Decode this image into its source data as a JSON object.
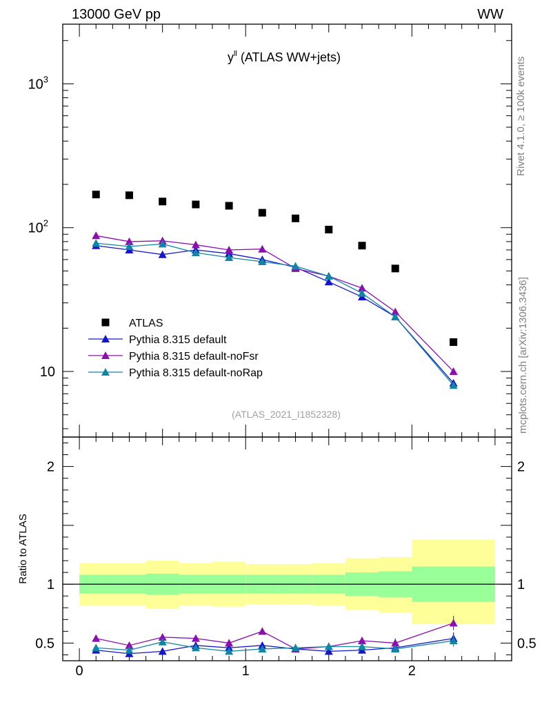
{
  "header": {
    "left": "13000 GeV pp",
    "right": "WW"
  },
  "title": {
    "main": "y",
    "sup": "ll",
    "rest": " (ATLAS WW+jets)"
  },
  "side": {
    "rivet": "Rivet 4.1.0, ≥ 100k events",
    "mcplots": "mcplots.cern.ch [arXiv:1306.3436]"
  },
  "watermark": "(ATLAS_2021_I1852328)",
  "colors": {
    "atlas": "#000000",
    "def": "#1515cc",
    "nofsr": "#8a0eb0",
    "norap": "#0f86a5",
    "band_in": "#99ff99",
    "band_out": "#ffff99"
  },
  "chart_data": {
    "type": "scatter",
    "x": [
      0.1,
      0.3,
      0.5,
      0.7,
      0.9,
      1.1,
      1.3,
      1.5,
      1.7,
      1.9,
      2.25
    ],
    "xlim": [
      -0.1,
      2.6
    ],
    "xticks": [
      {
        "v": 0,
        "label": "0"
      },
      {
        "v": 1,
        "label": "1"
      },
      {
        "v": 2,
        "label": "2"
      }
    ],
    "main": {
      "yscale": "log",
      "ylim": [
        3.5,
        2600
      ],
      "yticks": [
        {
          "v": 10,
          "label": "10"
        },
        {
          "v": 100,
          "label": "10",
          "sup": "2"
        },
        {
          "v": 1000,
          "label": "10",
          "sup": "3"
        }
      ],
      "legend": "mid-left"
    },
    "ratio": {
      "ylabel": "Ratio to ATLAS",
      "ylim": [
        0.35,
        2.25
      ],
      "yticks": [
        {
          "v": 0.5,
          "label": "0.5"
        },
        {
          "v": 1,
          "label": "1"
        },
        {
          "v": 2,
          "label": "2"
        }
      ],
      "bands": [
        {
          "x0": 0.0,
          "x1": 0.2,
          "in": [
            0.92,
            1.08
          ],
          "out": [
            0.82,
            1.18
          ]
        },
        {
          "x0": 0.2,
          "x1": 0.4,
          "in": [
            0.92,
            1.08
          ],
          "out": [
            0.82,
            1.18
          ]
        },
        {
          "x0": 0.4,
          "x1": 0.6,
          "in": [
            0.91,
            1.09
          ],
          "out": [
            0.79,
            1.2
          ]
        },
        {
          "x0": 0.6,
          "x1": 0.8,
          "in": [
            0.92,
            1.08
          ],
          "out": [
            0.82,
            1.18
          ]
        },
        {
          "x0": 0.8,
          "x1": 1.0,
          "in": [
            0.92,
            1.08
          ],
          "out": [
            0.81,
            1.19
          ]
        },
        {
          "x0": 1.0,
          "x1": 1.2,
          "in": [
            0.92,
            1.08
          ],
          "out": [
            0.83,
            1.17
          ]
        },
        {
          "x0": 1.2,
          "x1": 1.4,
          "in": [
            0.92,
            1.08
          ],
          "out": [
            0.83,
            1.17
          ]
        },
        {
          "x0": 1.4,
          "x1": 1.6,
          "in": [
            0.92,
            1.08
          ],
          "out": [
            0.82,
            1.18
          ]
        },
        {
          "x0": 1.6,
          "x1": 1.8,
          "in": [
            0.9,
            1.1
          ],
          "out": [
            0.78,
            1.22
          ]
        },
        {
          "x0": 1.8,
          "x1": 2.0,
          "in": [
            0.89,
            1.11
          ],
          "out": [
            0.76,
            1.23
          ]
        },
        {
          "x0": 2.0,
          "x1": 2.5,
          "in": [
            0.85,
            1.15
          ],
          "out": [
            0.66,
            1.38
          ]
        }
      ]
    },
    "series": [
      {
        "name": "ATLAS",
        "key": "atlas",
        "marker": "square",
        "values": [
          170,
          168,
          152,
          145,
          142,
          127,
          116,
          97,
          75,
          52,
          16
        ]
      },
      {
        "name": "Pythia 8.315 default",
        "key": "def",
        "marker": "triangle",
        "values": [
          75,
          70,
          65,
          70,
          66,
          60,
          53,
          42,
          33,
          24,
          8.3
        ],
        "ratio": [
          0.44,
          0.41,
          0.43,
          0.48,
          0.46,
          0.48,
          0.45,
          0.43,
          0.44,
          0.46,
          0.54
        ],
        "ratio_err": [
          0.02,
          0.02,
          0.02,
          0.02,
          0.02,
          0.02,
          0.02,
          0.03,
          0.03,
          0.03,
          0.05
        ]
      },
      {
        "name": "Pythia 8.315 default-noFsr",
        "key": "nofsr",
        "marker": "triangle",
        "values": [
          88,
          80,
          81,
          76,
          70,
          71,
          52,
          46,
          38,
          26,
          10
        ],
        "ratio": [
          0.54,
          0.48,
          0.55,
          0.54,
          0.5,
          0.6,
          0.45,
          0.47,
          0.52,
          0.5,
          0.67
        ],
        "ratio_err": [
          0.02,
          0.02,
          0.02,
          0.02,
          0.02,
          0.02,
          0.03,
          0.03,
          0.03,
          0.04,
          0.06
        ]
      },
      {
        "name": "Pythia 8.315 default-noRap",
        "key": "norap",
        "marker": "triangle",
        "values": [
          78,
          74,
          77,
          67,
          62,
          58,
          54,
          46,
          35,
          24,
          8
        ],
        "ratio": [
          0.46,
          0.44,
          0.51,
          0.46,
          0.43,
          0.45,
          0.46,
          0.47,
          0.47,
          0.45,
          0.52
        ],
        "ratio_err": [
          0.02,
          0.02,
          0.02,
          0.02,
          0.02,
          0.02,
          0.02,
          0.03,
          0.03,
          0.03,
          0.05
        ]
      }
    ]
  }
}
